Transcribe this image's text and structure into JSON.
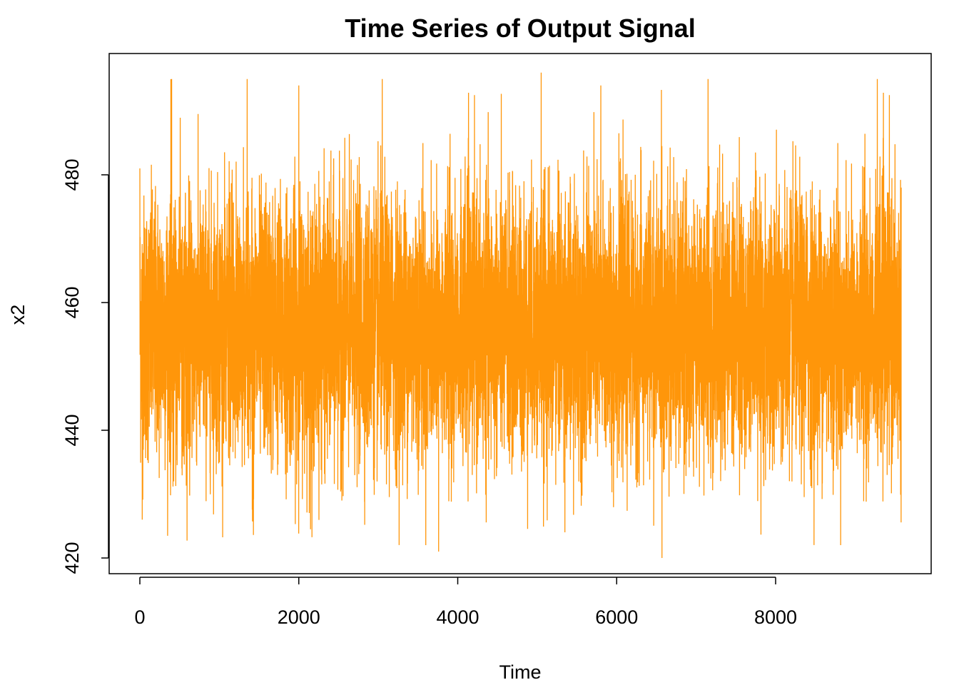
{
  "chart_data": {
    "type": "line",
    "title": "Time Series of Output Signal",
    "xlabel": "Time",
    "ylabel": "x2",
    "xlim": [
      0,
      9600
    ],
    "ylim": [
      420,
      497
    ],
    "x_ticks": [
      0,
      2000,
      4000,
      6000,
      8000
    ],
    "x_tick_labels": [
      "0",
      "2000",
      "4000",
      "6000",
      "8000"
    ],
    "y_ticks": [
      420,
      440,
      460,
      480
    ],
    "y_tick_labels": [
      "420",
      "440",
      "460",
      "480"
    ],
    "grid": false,
    "legend": "none",
    "series": [
      {
        "color": "#FF960A",
        "n_points": 9600,
        "x_start": 0,
        "x_end": 9580,
        "mean": 456,
        "min": 420,
        "max": 496,
        "core_low": 434,
        "core_high": 477,
        "extremes": [
          {
            "x": 0,
            "y": 481
          },
          {
            "x": 30,
            "y": 426
          },
          {
            "x": 400,
            "y": 495
          },
          {
            "x": 1350,
            "y": 495
          },
          {
            "x": 2000,
            "y": 494
          },
          {
            "x": 3050,
            "y": 495
          },
          {
            "x": 3760,
            "y": 421
          },
          {
            "x": 5050,
            "y": 496
          },
          {
            "x": 5800,
            "y": 494
          },
          {
            "x": 6570,
            "y": 420
          },
          {
            "x": 7150,
            "y": 495
          },
          {
            "x": 9280,
            "y": 495
          },
          {
            "x": 9580,
            "y": 478
          }
        ]
      }
    ]
  }
}
